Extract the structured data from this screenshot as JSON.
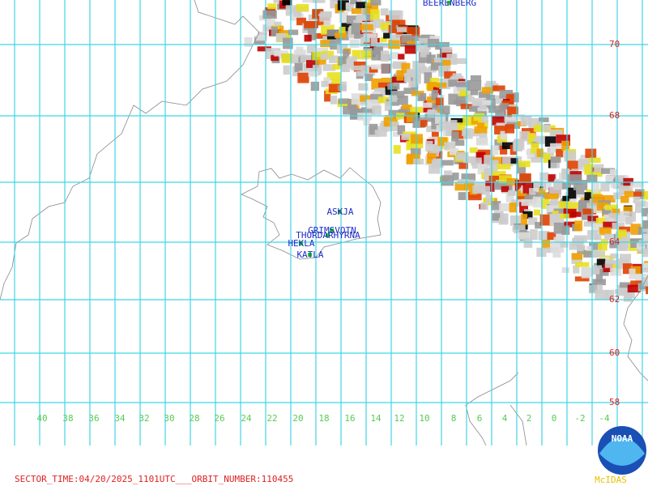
{
  "map": {
    "lat_labels": [
      "70",
      "68",
      "64",
      "62",
      "60",
      "58"
    ],
    "lon_labels": [
      "40",
      "38",
      "36",
      "34",
      "32",
      "30",
      "28",
      "26",
      "24",
      "22",
      "20",
      "18",
      "16",
      "14",
      "12",
      "10",
      "8",
      "6",
      "4",
      "2",
      "0",
      "-2",
      "-4"
    ],
    "places": [
      "BEERENBERG",
      "ASKJA",
      "GRIMSVOTN",
      "THORDARHYRNA",
      "HEKLA",
      "KATLA"
    ],
    "footer": "SECTOR_TIME:04/20/2025_1101UTC___ORBIT_NUMBER:110455",
    "logo": "NOAA",
    "credit": "McIDAS"
  }
}
